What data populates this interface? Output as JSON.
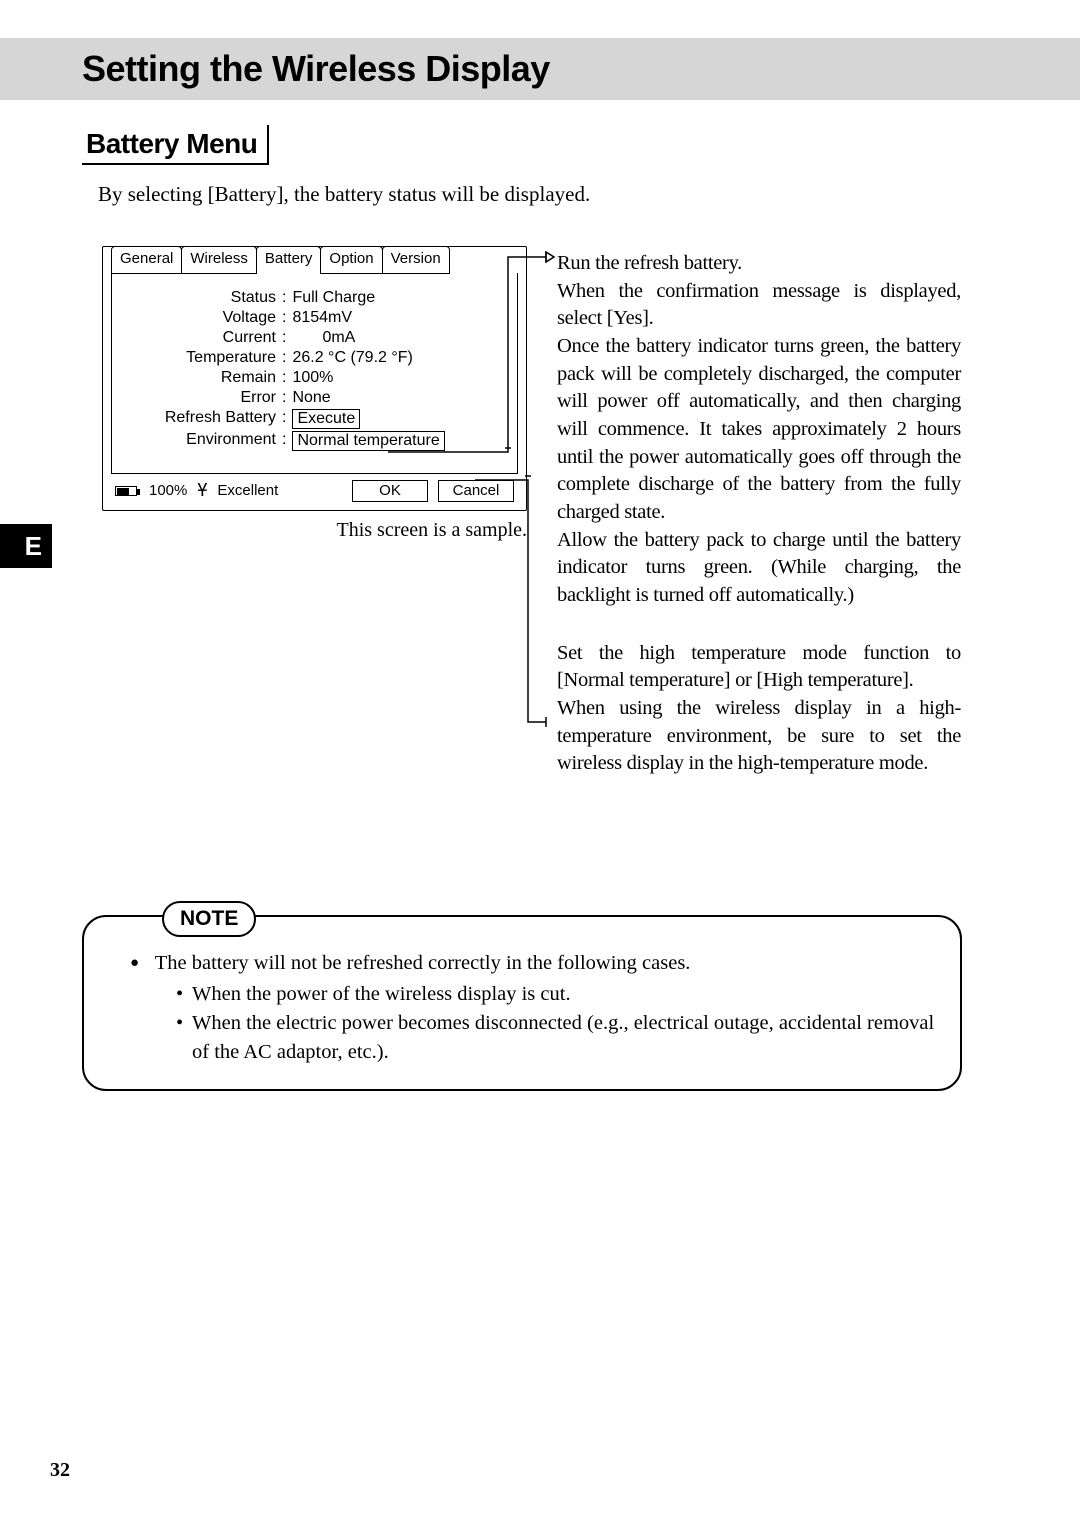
{
  "page": {
    "title": "Setting the Wireless Display",
    "section": "Battery Menu",
    "intro": "By selecting [Battery], the battery status will be displayed.",
    "sideTab": "E",
    "pageNumber": "32"
  },
  "panel": {
    "tabs": [
      "General",
      "Wireless",
      "Battery",
      "Option",
      "Version"
    ],
    "activeTabIndex": 2,
    "rows": [
      {
        "label": "Status",
        "value": "Full Charge"
      },
      {
        "label": "Voltage",
        "value": "8154mV"
      },
      {
        "label": "Current",
        "value": "0mA",
        "indentValue": true
      },
      {
        "label": "Temperature",
        "value": "26.2 °C (79.2 °F)"
      },
      {
        "label": "Remain",
        "value": "100%"
      },
      {
        "label": "Error",
        "value": "None"
      },
      {
        "label": "Refresh Battery",
        "value": "Execute",
        "boxed": true
      },
      {
        "label": "Environment",
        "value": "Normal temperature",
        "boxed": true
      }
    ],
    "status": {
      "batteryPercent": "100%",
      "batteryFillPct": 60,
      "signalText": "Excellent"
    },
    "buttons": {
      "ok": "OK",
      "cancel": "Cancel"
    },
    "caption": "This screen is a sample."
  },
  "explain": {
    "refresh": "Run the refresh battery.\nWhen the confirmation message is displayed, select [Yes].\nOnce the battery indicator turns green, the battery pack will be completely discharged, the computer will power off automatically, and then charging will commence. It takes approximately 2 hours until the power automatically goes off through the complete discharge of the battery from the fully charged state.\nAllow the battery pack to charge until the battery indicator turns green. (While charging, the backlight is turned off automatically.)",
    "environment": "Set the high temperature mode function to [Normal temperature] or [High temperature].\nWhen using the wireless display in a high-temperature environment, be sure to set the wireless display in the high-temperature mode."
  },
  "note": {
    "label": "NOTE",
    "lead": "The battery will not be refreshed correctly in the following cases.",
    "items": [
      "When the power of the wireless display is cut.",
      "When the electric power becomes disconnected (e.g., electrical outage, accidental removal of the AC adaptor, etc.)."
    ]
  },
  "colors": {
    "titleBarBg": "#d6d6d6",
    "text": "#000000",
    "background": "#ffffff"
  }
}
